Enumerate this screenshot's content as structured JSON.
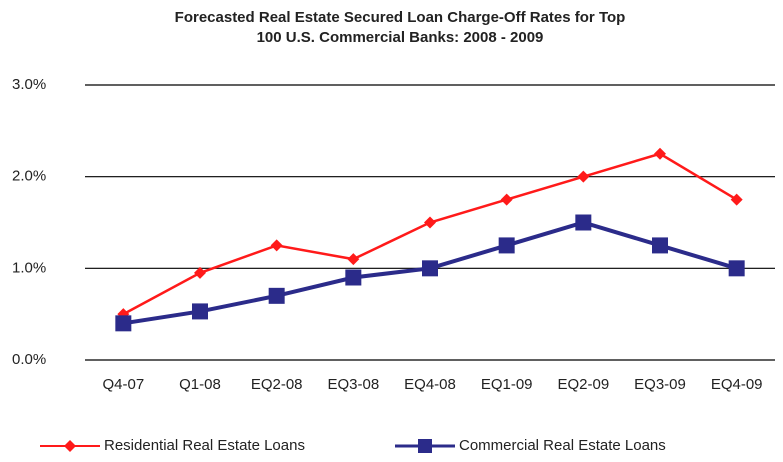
{
  "chart_data": {
    "type": "line",
    "title": [
      "Forecasted Real Estate Secured Loan Charge-Off Rates for Top",
      "100 U.S. Commercial Banks: 2008 - 2009"
    ],
    "categories": [
      "Q4-07",
      "Q1-08",
      "EQ2-08",
      "EQ3-08",
      "EQ4-08",
      "EQ1-09",
      "EQ2-09",
      "EQ3-09",
      "EQ4-09"
    ],
    "series": [
      {
        "name": "Residential Real Estate Loans",
        "color": "#ff1a1a",
        "marker": "diamond",
        "values": [
          0.5,
          0.95,
          1.25,
          1.1,
          1.5,
          1.75,
          2.0,
          2.25,
          1.75
        ]
      },
      {
        "name": "Commercial Real Estate Loans",
        "color": "#2b2b8a",
        "marker": "square",
        "values": [
          0.4,
          0.53,
          0.7,
          0.9,
          1.0,
          1.25,
          1.5,
          1.25,
          1.0
        ]
      }
    ],
    "ylim": [
      0,
      3
    ],
    "yticks": [
      {
        "value": 0,
        "label": "0.0%"
      },
      {
        "value": 1,
        "label": "1.0%"
      },
      {
        "value": 2,
        "label": "2.0%"
      },
      {
        "value": 3,
        "label": "3.0%"
      }
    ],
    "grid": true,
    "legend": "bottom"
  }
}
